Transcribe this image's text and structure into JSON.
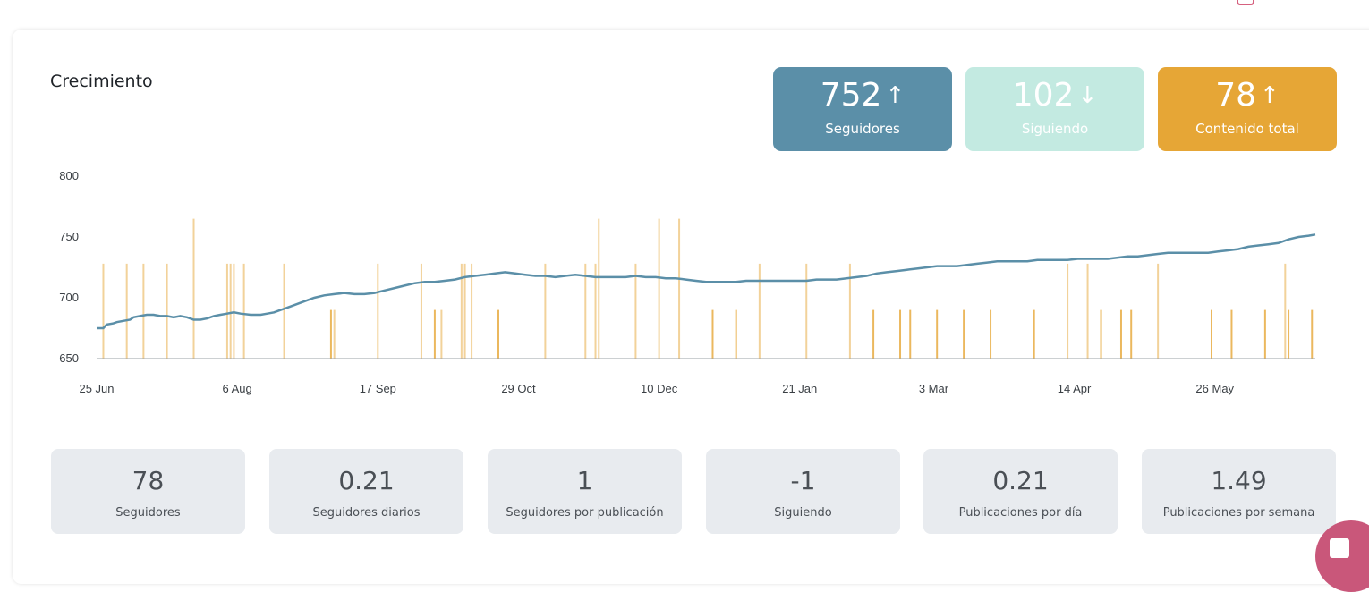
{
  "title": "Crecimiento",
  "stats": [
    {
      "value": "752",
      "arrow": "↑",
      "label": "Seguidores",
      "color": "#5b8fa8"
    },
    {
      "value": "102",
      "arrow": "↓",
      "label": "Siguiendo",
      "color": "#c3eae1"
    },
    {
      "value": "78",
      "arrow": "↑",
      "label": "Contenido total",
      "color": "#e6a636"
    }
  ],
  "chart_data": {
    "type": "line",
    "y_ticks": [
      "800",
      "750",
      "700",
      "650"
    ],
    "ylim": [
      650,
      800
    ],
    "x_tick_labels": [
      "25 Jun",
      "6 Aug",
      "17 Sep",
      "29 Oct",
      "10 Dec",
      "21 Jan",
      "3 Mar",
      "14 Apr",
      "26 May"
    ],
    "x_tick_days": [
      0,
      42,
      84,
      126,
      168,
      210,
      250,
      292,
      334
    ],
    "x_range_days": [
      0,
      364
    ],
    "series": [
      {
        "type": "line",
        "color": "#5b8fa8",
        "points": [
          [
            0,
            675
          ],
          [
            2,
            675
          ],
          [
            3,
            678
          ],
          [
            5,
            679
          ],
          [
            6,
            680
          ],
          [
            8,
            681
          ],
          [
            10,
            682
          ],
          [
            11,
            684
          ],
          [
            13,
            685
          ],
          [
            15,
            686
          ],
          [
            17,
            686
          ],
          [
            19,
            685
          ],
          [
            21,
            685
          ],
          [
            23,
            684
          ],
          [
            25,
            685
          ],
          [
            27,
            684
          ],
          [
            29,
            682
          ],
          [
            31,
            682
          ],
          [
            33,
            683
          ],
          [
            35,
            685
          ],
          [
            37,
            686
          ],
          [
            39,
            687
          ],
          [
            41,
            688
          ],
          [
            43,
            687
          ],
          [
            46,
            686
          ],
          [
            49,
            686
          ],
          [
            51,
            687
          ],
          [
            53,
            688
          ],
          [
            55,
            690
          ],
          [
            57,
            692
          ],
          [
            59,
            694
          ],
          [
            61,
            696
          ],
          [
            63,
            698
          ],
          [
            65,
            700
          ],
          [
            68,
            702
          ],
          [
            71,
            703
          ],
          [
            74,
            704
          ],
          [
            77,
            703
          ],
          [
            80,
            703
          ],
          [
            83,
            704
          ],
          [
            86,
            706
          ],
          [
            89,
            708
          ],
          [
            92,
            710
          ],
          [
            95,
            712
          ],
          [
            98,
            713
          ],
          [
            101,
            713
          ],
          [
            104,
            714
          ],
          [
            107,
            715
          ],
          [
            110,
            717
          ],
          [
            113,
            718
          ],
          [
            116,
            719
          ],
          [
            119,
            720
          ],
          [
            122,
            721
          ],
          [
            125,
            720
          ],
          [
            128,
            719
          ],
          [
            131,
            718
          ],
          [
            134,
            718
          ],
          [
            137,
            717
          ],
          [
            140,
            718
          ],
          [
            143,
            719
          ],
          [
            146,
            718
          ],
          [
            149,
            717
          ],
          [
            152,
            717
          ],
          [
            155,
            717
          ],
          [
            158,
            717
          ],
          [
            161,
            718
          ],
          [
            164,
            717
          ],
          [
            167,
            717
          ],
          [
            170,
            716
          ],
          [
            173,
            716
          ],
          [
            176,
            715
          ],
          [
            179,
            714
          ],
          [
            182,
            713
          ],
          [
            185,
            713
          ],
          [
            188,
            713
          ],
          [
            191,
            713
          ],
          [
            194,
            714
          ],
          [
            197,
            714
          ],
          [
            200,
            714
          ],
          [
            203,
            714
          ],
          [
            206,
            714
          ],
          [
            209,
            714
          ],
          [
            212,
            714
          ],
          [
            215,
            715
          ],
          [
            218,
            715
          ],
          [
            221,
            715
          ],
          [
            224,
            716
          ],
          [
            227,
            717
          ],
          [
            230,
            718
          ],
          [
            233,
            720
          ],
          [
            236,
            721
          ],
          [
            239,
            722
          ],
          [
            242,
            723
          ],
          [
            245,
            724
          ],
          [
            248,
            725
          ],
          [
            251,
            726
          ],
          [
            254,
            726
          ],
          [
            257,
            726
          ],
          [
            260,
            727
          ],
          [
            263,
            728
          ],
          [
            266,
            729
          ],
          [
            269,
            730
          ],
          [
            272,
            730
          ],
          [
            275,
            730
          ],
          [
            278,
            730
          ],
          [
            281,
            731
          ],
          [
            284,
            731
          ],
          [
            287,
            731
          ],
          [
            290,
            731
          ],
          [
            293,
            732
          ],
          [
            296,
            732
          ],
          [
            299,
            732
          ],
          [
            302,
            732
          ],
          [
            305,
            733
          ],
          [
            308,
            734
          ],
          [
            311,
            734
          ],
          [
            314,
            735
          ],
          [
            317,
            736
          ],
          [
            320,
            737
          ],
          [
            323,
            737
          ],
          [
            326,
            737
          ],
          [
            329,
            737
          ],
          [
            332,
            737
          ],
          [
            335,
            738
          ],
          [
            338,
            739
          ],
          [
            341,
            740
          ],
          [
            344,
            742
          ],
          [
            347,
            743
          ],
          [
            350,
            744
          ],
          [
            353,
            745
          ],
          [
            356,
            748
          ],
          [
            359,
            750
          ],
          [
            362,
            751
          ],
          [
            364,
            752
          ]
        ]
      },
      {
        "type": "bars",
        "color": "#e6a636",
        "days": [
          2,
          9,
          14,
          21,
          29,
          39,
          40,
          41,
          44,
          56,
          70,
          71,
          84,
          97,
          101,
          103,
          109,
          110,
          112,
          120,
          134,
          146,
          149,
          150,
          161,
          168,
          174,
          184,
          191,
          198,
          212,
          225,
          232,
          240,
          243,
          251,
          259,
          267,
          280,
          290,
          296,
          300,
          306,
          309,
          317,
          333,
          339,
          349,
          355,
          356,
          363
        ],
        "values": [
          728,
          728,
          728,
          728,
          765,
          728,
          728,
          728,
          728,
          728,
          690,
          690,
          728,
          728,
          690,
          690,
          728,
          728,
          728,
          690,
          728,
          728,
          728,
          765,
          728,
          765,
          765,
          690,
          690,
          728,
          728,
          728,
          690,
          690,
          690,
          690,
          690,
          690,
          690,
          728,
          728,
          690,
          690,
          690,
          728,
          690,
          690,
          690,
          728,
          690,
          690
        ],
        "opacities": [
          0.5,
          0.5,
          0.5,
          0.5,
          0.5,
          0.5,
          0.5,
          0.5,
          0.5,
          0.5,
          0.8,
          0.5,
          0.5,
          0.5,
          0.8,
          0.5,
          0.5,
          0.5,
          0.5,
          0.8,
          0.5,
          0.5,
          0.5,
          0.5,
          0.5,
          0.5,
          0.5,
          0.8,
          0.8,
          0.5,
          0.5,
          0.5,
          0.8,
          0.8,
          0.8,
          0.8,
          0.8,
          0.8,
          0.8,
          0.5,
          0.5,
          0.8,
          0.8,
          0.8,
          0.5,
          0.8,
          0.8,
          0.8,
          0.5,
          0.8,
          0.8
        ]
      }
    ],
    "grid": false
  },
  "metrics": [
    {
      "value": "78",
      "label": "Seguidores"
    },
    {
      "value": "0.21",
      "label": "Seguidores diarios"
    },
    {
      "value": "1",
      "label": "Seguidores por publicación"
    },
    {
      "value": "-1",
      "label": "Siguiendo"
    },
    {
      "value": "0.21",
      "label": "Publicaciones por día"
    },
    {
      "value": "1.49",
      "label": "Publicaciones por semana"
    }
  ]
}
